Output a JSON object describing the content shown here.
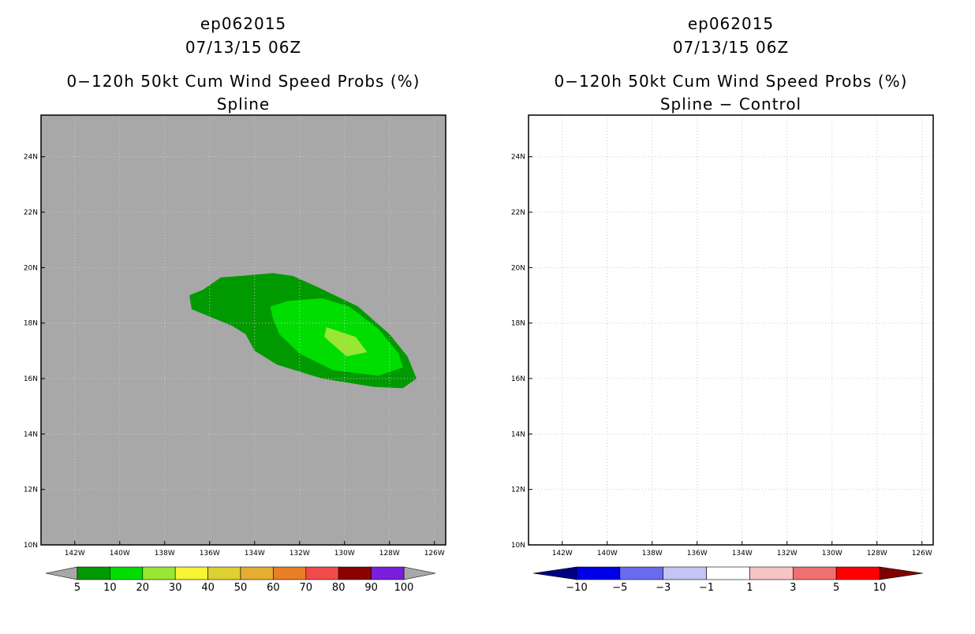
{
  "chart_data": [
    {
      "type": "heatmap",
      "title_lines": [
        "ep062015",
        "07/13/15 06Z",
        "0−120h 50kt Cum Wind Speed Probs (%)",
        "Spline"
      ],
      "x_ticks": [
        "142W",
        "140W",
        "138W",
        "136W",
        "134W",
        "132W",
        "130W",
        "128W",
        "126W"
      ],
      "y_ticks": [
        "24N",
        "22N",
        "20N",
        "18N",
        "16N",
        "14N",
        "12N",
        "10N"
      ],
      "xlim": [
        -143.5,
        -125.5
      ],
      "ylim": [
        10,
        25.5
      ],
      "background_color": "#a8a8a8",
      "grid": "dotted",
      "contours": [
        {
          "level": 5,
          "color": "#009900",
          "points": [
            [
              -136.9,
              19.0
            ],
            [
              -136.3,
              19.2
            ],
            [
              -135.5,
              19.65
            ],
            [
              -134.6,
              19.7
            ],
            [
              -133.2,
              19.8
            ],
            [
              -132.3,
              19.7
            ],
            [
              -131.2,
              19.3
            ],
            [
              -129.4,
              18.6
            ],
            [
              -128.0,
              17.6
            ],
            [
              -127.2,
              16.8
            ],
            [
              -126.8,
              16.0
            ],
            [
              -127.4,
              15.65
            ],
            [
              -128.7,
              15.7
            ],
            [
              -131.0,
              16.0
            ],
            [
              -133.0,
              16.5
            ],
            [
              -134.0,
              17.0
            ],
            [
              -134.4,
              17.6
            ],
            [
              -135.0,
              17.9
            ],
            [
              -136.8,
              18.5
            ]
          ]
        },
        {
          "level": 10,
          "color": "#00dd00",
          "points": [
            [
              -132.5,
              18.8
            ],
            [
              -131.0,
              18.9
            ],
            [
              -129.8,
              18.6
            ],
            [
              -128.5,
              17.8
            ],
            [
              -127.6,
              16.9
            ],
            [
              -127.4,
              16.4
            ],
            [
              -128.5,
              16.1
            ],
            [
              -130.5,
              16.3
            ],
            [
              -132.0,
              16.9
            ],
            [
              -132.9,
              17.6
            ],
            [
              -133.2,
              18.2
            ],
            [
              -133.3,
              18.6
            ]
          ]
        },
        {
          "level": 20,
          "color": "#99e633",
          "points": [
            [
              -130.8,
              17.85
            ],
            [
              -129.5,
              17.5
            ],
            [
              -129.0,
              16.95
            ],
            [
              -129.9,
              16.8
            ],
            [
              -130.2,
              17.0
            ],
            [
              -130.9,
              17.5
            ]
          ]
        }
      ],
      "colorbar": {
        "labels": [
          "5",
          "10",
          "20",
          "30",
          "40",
          "50",
          "60",
          "70",
          "80",
          "90",
          "100"
        ],
        "colors": [
          "#009900",
          "#00dd00",
          "#99e633",
          "#f5f533",
          "#dcd032",
          "#e6ad32",
          "#e87f28",
          "#f04a4a",
          "#8c0000",
          "#7a1fdb"
        ],
        "end_colors": [
          "#a8a8a8",
          "#a8a8a8"
        ]
      }
    },
    {
      "type": "heatmap",
      "title_lines": [
        "ep062015",
        "07/13/15 06Z",
        "0−120h 50kt Cum Wind Speed Probs (%)",
        "Spline − Control"
      ],
      "x_ticks": [
        "142W",
        "140W",
        "138W",
        "136W",
        "134W",
        "132W",
        "130W",
        "128W",
        "126W"
      ],
      "y_ticks": [
        "24N",
        "22N",
        "20N",
        "18N",
        "16N",
        "14N",
        "12N",
        "10N"
      ],
      "xlim": [
        -143.5,
        -125.5
      ],
      "ylim": [
        10,
        25.5
      ],
      "background_color": "#ffffff",
      "grid": "dotted",
      "contours": [],
      "colorbar": {
        "labels": [
          "−10",
          "−5",
          "−3",
          "−1",
          "1",
          "3",
          "5",
          "10"
        ],
        "colors": [
          "#0000e6",
          "#6b6bf0",
          "#c4c4f5",
          "#ffffff",
          "#f7c4c4",
          "#f07070",
          "#ff0000"
        ],
        "end_colors": [
          "#000080",
          "#800000"
        ]
      }
    }
  ]
}
